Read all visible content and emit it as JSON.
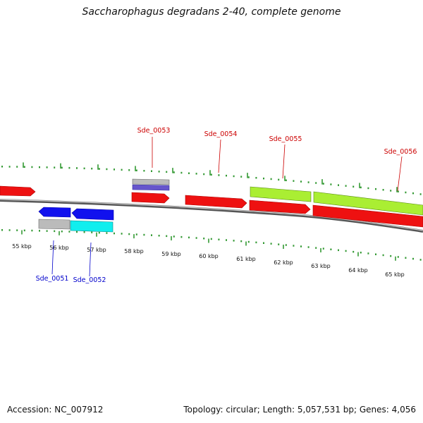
{
  "title": "Saccharophagus degradans 2-40, complete genome",
  "footer": {
    "accession": "Accession: NC_007912",
    "summary": "Topology: circular; Length: 5,057,531 bp; Genes: 4,056"
  },
  "colors": {
    "red": "#ee1111",
    "blue": "#1111ee",
    "cyan": "#11eeee",
    "lime": "#aaee33",
    "purple": "#6655cc",
    "gray": "#bbbbbb",
    "tick": "#339933",
    "label_red": "#cc0000",
    "label_blue": "#0000cc"
  },
  "scale_labels": [
    "55 kbp",
    "56 kbp",
    "57 kbp",
    "58 kbp",
    "59 kbp",
    "60 kbp",
    "61 kbp",
    "62 kbp",
    "63 kbp",
    "64 kbp",
    "65 kbp"
  ],
  "gene_labels": [
    {
      "text": "Sde_0053",
      "strand": "forward"
    },
    {
      "text": "Sde_0054",
      "strand": "forward"
    },
    {
      "text": "Sde_0055",
      "strand": "forward"
    },
    {
      "text": "Sde_0056",
      "strand": "forward"
    },
    {
      "text": "Sde_0051",
      "strand": "reverse"
    },
    {
      "text": "Sde_0052",
      "strand": "reverse"
    }
  ]
}
